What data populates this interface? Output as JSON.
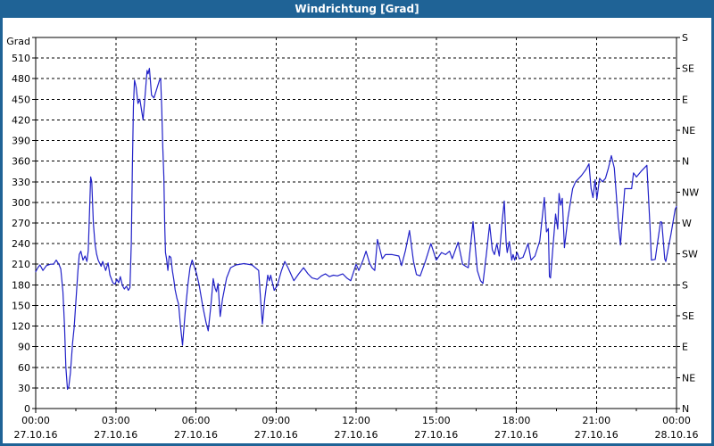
{
  "window": {
    "title": "Windrichtung [Grad]"
  },
  "colors": {
    "titlebar_bg": "#1F6396",
    "window_border": "#1F6396",
    "title_text": "#FFFFFF",
    "line": "#2121C8",
    "grid": "#000000",
    "background": "#FFFFFF"
  },
  "chart_data": {
    "type": "line",
    "title": "Windrichtung [Grad]",
    "grid": true,
    "legend": false,
    "y_axis_left": {
      "unit_label": "Grad",
      "min": 0,
      "max": 540,
      "gridline_step": 30,
      "tick_values": [
        0,
        30,
        60,
        90,
        120,
        150,
        180,
        210,
        240,
        270,
        300,
        330,
        360,
        390,
        420,
        450,
        480,
        510
      ]
    },
    "y_axis_right": {
      "tick_step": 45,
      "compass_ticks": [
        {
          "value": 540,
          "label": "S"
        },
        {
          "value": 495,
          "label": "SE"
        },
        {
          "value": 450,
          "label": "E"
        },
        {
          "value": 405,
          "label": "NE"
        },
        {
          "value": 360,
          "label": "N"
        },
        {
          "value": 315,
          "label": "NW"
        },
        {
          "value": 270,
          "label": "W"
        },
        {
          "value": 225,
          "label": "SW"
        },
        {
          "value": 180,
          "label": "S"
        },
        {
          "value": 135,
          "label": "SE"
        },
        {
          "value": 90,
          "label": "E"
        },
        {
          "value": 45,
          "label": "NE"
        },
        {
          "value": 0,
          "label": "N"
        }
      ]
    },
    "x_axis": {
      "start_hour": 0,
      "end_hour": 24,
      "major_tick_hours": 3,
      "minor_tick_hours": 1.5,
      "major_ticks": [
        {
          "hour": 0,
          "time": "00:00",
          "date": "27.10.16"
        },
        {
          "hour": 3,
          "time": "03:00",
          "date": "27.10.16"
        },
        {
          "hour": 6,
          "time": "06:00",
          "date": "27.10.16"
        },
        {
          "hour": 9,
          "time": "09:00",
          "date": "27.10.16"
        },
        {
          "hour": 12,
          "time": "12:00",
          "date": "27.10.16"
        },
        {
          "hour": 15,
          "time": "15:00",
          "date": "27.10.16"
        },
        {
          "hour": 18,
          "time": "18:00",
          "date": "27.10.16"
        },
        {
          "hour": 21,
          "time": "21:00",
          "date": "27.10.16"
        },
        {
          "hour": 24,
          "time": "00:00",
          "date": "28.10.16"
        }
      ]
    },
    "series": [
      {
        "name": "Windrichtung",
        "color": "#2121C8",
        "points": [
          [
            0,
            199
          ],
          [
            0.08,
            205
          ],
          [
            0.16,
            209
          ],
          [
            0.27,
            201
          ],
          [
            0.4,
            208
          ],
          [
            0.55,
            210
          ],
          [
            0.67,
            210
          ],
          [
            0.77,
            216
          ],
          [
            0.88,
            209
          ],
          [
            0.94,
            203
          ],
          [
            1.02,
            170
          ],
          [
            1.08,
            120
          ],
          [
            1.13,
            60
          ],
          [
            1.19,
            28
          ],
          [
            1.24,
            32
          ],
          [
            1.3,
            52
          ],
          [
            1.38,
            95
          ],
          [
            1.44,
            118
          ],
          [
            1.52,
            165
          ],
          [
            1.58,
            200
          ],
          [
            1.63,
            224
          ],
          [
            1.69,
            229
          ],
          [
            1.77,
            216
          ],
          [
            1.85,
            222
          ],
          [
            1.92,
            214
          ],
          [
            1.97,
            230
          ],
          [
            2.02,
            290
          ],
          [
            2.06,
            337
          ],
          [
            2.1,
            330
          ],
          [
            2.16,
            270
          ],
          [
            2.22,
            240
          ],
          [
            2.28,
            225
          ],
          [
            2.34,
            216
          ],
          [
            2.45,
            207
          ],
          [
            2.51,
            214
          ],
          [
            2.62,
            201
          ],
          [
            2.71,
            212
          ],
          [
            2.78,
            194
          ],
          [
            2.89,
            183
          ],
          [
            2.97,
            181
          ],
          [
            3.04,
            188
          ],
          [
            3.11,
            183
          ],
          [
            3.17,
            192
          ],
          [
            3.25,
            179
          ],
          [
            3.32,
            174
          ],
          [
            3.4,
            178
          ],
          [
            3.47,
            172
          ],
          [
            3.53,
            176
          ],
          [
            3.58,
            240
          ],
          [
            3.62,
            350
          ],
          [
            3.66,
            440
          ],
          [
            3.7,
            478
          ],
          [
            3.76,
            468
          ],
          [
            3.83,
            444
          ],
          [
            3.9,
            450
          ],
          [
            3.96,
            435
          ],
          [
            4.02,
            420
          ],
          [
            4.1,
            458
          ],
          [
            4.17,
            492
          ],
          [
            4.21,
            487
          ],
          [
            4.26,
            495
          ],
          [
            4.34,
            456
          ],
          [
            4.43,
            452
          ],
          [
            4.55,
            467
          ],
          [
            4.63,
            477
          ],
          [
            4.68,
            480
          ],
          [
            4.72,
            437
          ],
          [
            4.76,
            380
          ],
          [
            4.8,
            337
          ],
          [
            4.83,
            270
          ],
          [
            4.86,
            227
          ],
          [
            4.9,
            218
          ],
          [
            4.95,
            201
          ],
          [
            5,
            222
          ],
          [
            5.06,
            220
          ],
          [
            5.12,
            200
          ],
          [
            5.17,
            188
          ],
          [
            5.22,
            173
          ],
          [
            5.29,
            160
          ],
          [
            5.35,
            152
          ],
          [
            5.42,
            122
          ],
          [
            5.5,
            92
          ],
          [
            5.6,
            140
          ],
          [
            5.7,
            180
          ],
          [
            5.78,
            205
          ],
          [
            5.86,
            216
          ],
          [
            5.95,
            205
          ],
          [
            6.02,
            197
          ],
          [
            6.12,
            180
          ],
          [
            6.25,
            150
          ],
          [
            6.38,
            125
          ],
          [
            6.46,
            113
          ],
          [
            6.56,
            150
          ],
          [
            6.65,
            189
          ],
          [
            6.72,
            175
          ],
          [
            6.77,
            170
          ],
          [
            6.83,
            182
          ],
          [
            6.91,
            134
          ],
          [
            7,
            160
          ],
          [
            7.15,
            190
          ],
          [
            7.3,
            205
          ],
          [
            7.5,
            209
          ],
          [
            7.8,
            211
          ],
          [
            8.1,
            209
          ],
          [
            8.35,
            201
          ],
          [
            8.42,
            160
          ],
          [
            8.49,
            123
          ],
          [
            8.58,
            160
          ],
          [
            8.69,
            194
          ],
          [
            8.75,
            186
          ],
          [
            8.8,
            194
          ],
          [
            8.93,
            172
          ],
          [
            9.05,
            179
          ],
          [
            9.2,
            200
          ],
          [
            9.33,
            214
          ],
          [
            9.45,
            205
          ],
          [
            9.67,
            186
          ],
          [
            9.85,
            196
          ],
          [
            10.03,
            205
          ],
          [
            10.2,
            196
          ],
          [
            10.35,
            190
          ],
          [
            10.55,
            188
          ],
          [
            10.7,
            193
          ],
          [
            10.85,
            196
          ],
          [
            11,
            192
          ],
          [
            11.15,
            194
          ],
          [
            11.3,
            193
          ],
          [
            11.5,
            196
          ],
          [
            11.65,
            190
          ],
          [
            11.8,
            186
          ],
          [
            12,
            210
          ],
          [
            12.1,
            201
          ],
          [
            12.25,
            215
          ],
          [
            12.37,
            229
          ],
          [
            12.5,
            212
          ],
          [
            12.59,
            205
          ],
          [
            12.7,
            201
          ],
          [
            12.8,
            246
          ],
          [
            12.98,
            218
          ],
          [
            13.1,
            224
          ],
          [
            13.35,
            224
          ],
          [
            13.6,
            222
          ],
          [
            13.7,
            208
          ],
          [
            13.85,
            230
          ],
          [
            14,
            259
          ],
          [
            14.15,
            214
          ],
          [
            14.26,
            195
          ],
          [
            14.4,
            193
          ],
          [
            14.6,
            215
          ],
          [
            14.8,
            240
          ],
          [
            15,
            216
          ],
          [
            15.2,
            227
          ],
          [
            15.35,
            224
          ],
          [
            15.5,
            229
          ],
          [
            15.6,
            218
          ],
          [
            15.82,
            242
          ],
          [
            15.99,
            210
          ],
          [
            16.1,
            207
          ],
          [
            16.2,
            205
          ],
          [
            16.38,
            272
          ],
          [
            16.54,
            201
          ],
          [
            16.66,
            186
          ],
          [
            16.75,
            182
          ],
          [
            16.88,
            225
          ],
          [
            17,
            268
          ],
          [
            17.1,
            231
          ],
          [
            17.18,
            224
          ],
          [
            17.27,
            240
          ],
          [
            17.36,
            222
          ],
          [
            17.47,
            272
          ],
          [
            17.55,
            302
          ],
          [
            17.62,
            242
          ],
          [
            17.66,
            227
          ],
          [
            17.74,
            243
          ],
          [
            17.83,
            216
          ],
          [
            17.88,
            224
          ],
          [
            17.94,
            216
          ],
          [
            18.03,
            227
          ],
          [
            18.11,
            218
          ],
          [
            18.25,
            220
          ],
          [
            18.44,
            240
          ],
          [
            18.55,
            216
          ],
          [
            18.7,
            222
          ],
          [
            18.88,
            244
          ],
          [
            19.05,
            307
          ],
          [
            19.13,
            257
          ],
          [
            19.2,
            262
          ],
          [
            19.24,
            192
          ],
          [
            19.28,
            190
          ],
          [
            19.47,
            283
          ],
          [
            19.55,
            261
          ],
          [
            19.6,
            313
          ],
          [
            19.66,
            296
          ],
          [
            19.72,
            306
          ],
          [
            19.8,
            234
          ],
          [
            19.94,
            279
          ],
          [
            20.11,
            320
          ],
          [
            20.22,
            330
          ],
          [
            20.44,
            339
          ],
          [
            20.61,
            348
          ],
          [
            20.72,
            356
          ],
          [
            20.8,
            320
          ],
          [
            20.87,
            307
          ],
          [
            20.95,
            333
          ],
          [
            21.02,
            305
          ],
          [
            21.12,
            335
          ],
          [
            21.23,
            330
          ],
          [
            21.34,
            335
          ],
          [
            21.45,
            350
          ],
          [
            21.56,
            368
          ],
          [
            21.67,
            350
          ],
          [
            21.84,
            261
          ],
          [
            21.9,
            238
          ],
          [
            22.06,
            320
          ],
          [
            22.2,
            320
          ],
          [
            22.32,
            320
          ],
          [
            22.39,
            343
          ],
          [
            22.5,
            337
          ],
          [
            22.67,
            345
          ],
          [
            22.89,
            354
          ],
          [
            23,
            270
          ],
          [
            23.06,
            216
          ],
          [
            23.2,
            217
          ],
          [
            23.4,
            272
          ],
          [
            23.45,
            271
          ],
          [
            23.56,
            218
          ],
          [
            23.6,
            214
          ],
          [
            23.7,
            235
          ],
          [
            23.79,
            253
          ],
          [
            23.95,
            290
          ],
          [
            24,
            294
          ]
        ]
      }
    ]
  }
}
